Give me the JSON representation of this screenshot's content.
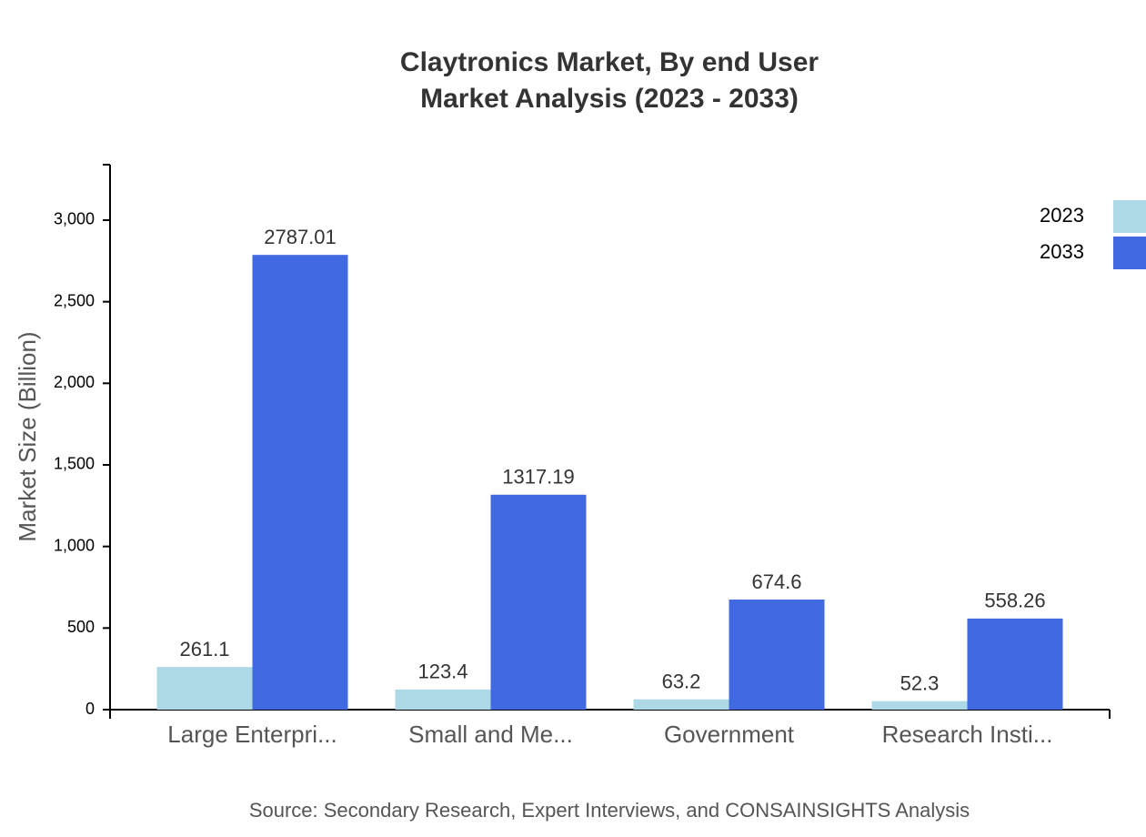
{
  "chart_data": {
    "type": "bar",
    "title": "Claytronics Market, By end User",
    "subtitle": "Market Analysis (2023 - 2033)",
    "y_label": "Market Size (Billion)",
    "source": "Source: Secondary Research, Expert Interviews, and CONSAINSIGHTS Analysis",
    "categories": [
      "Large Enterpri...",
      "Small and Me...",
      "Government",
      "Research Insti..."
    ],
    "series": [
      {
        "name": "2023",
        "color": "#add8e6",
        "values": [
          261.1,
          123.4,
          63.2,
          52.3
        ]
      },
      {
        "name": "2033",
        "color": "#4169e1",
        "values": [
          2787.01,
          1317.19,
          674.6,
          558.26
        ]
      }
    ],
    "ylim": [
      0,
      3340
    ],
    "yticks": [
      0,
      500,
      {
        "value": 1000,
        "label": "1,000"
      },
      {
        "value": 1500,
        "label": "1,500"
      },
      {
        "value": 2000,
        "label": "2,000"
      },
      {
        "value": 2500,
        "label": "2,500"
      },
      {
        "value": 3000,
        "label": "3,000"
      }
    ],
    "legend": "top-right"
  }
}
